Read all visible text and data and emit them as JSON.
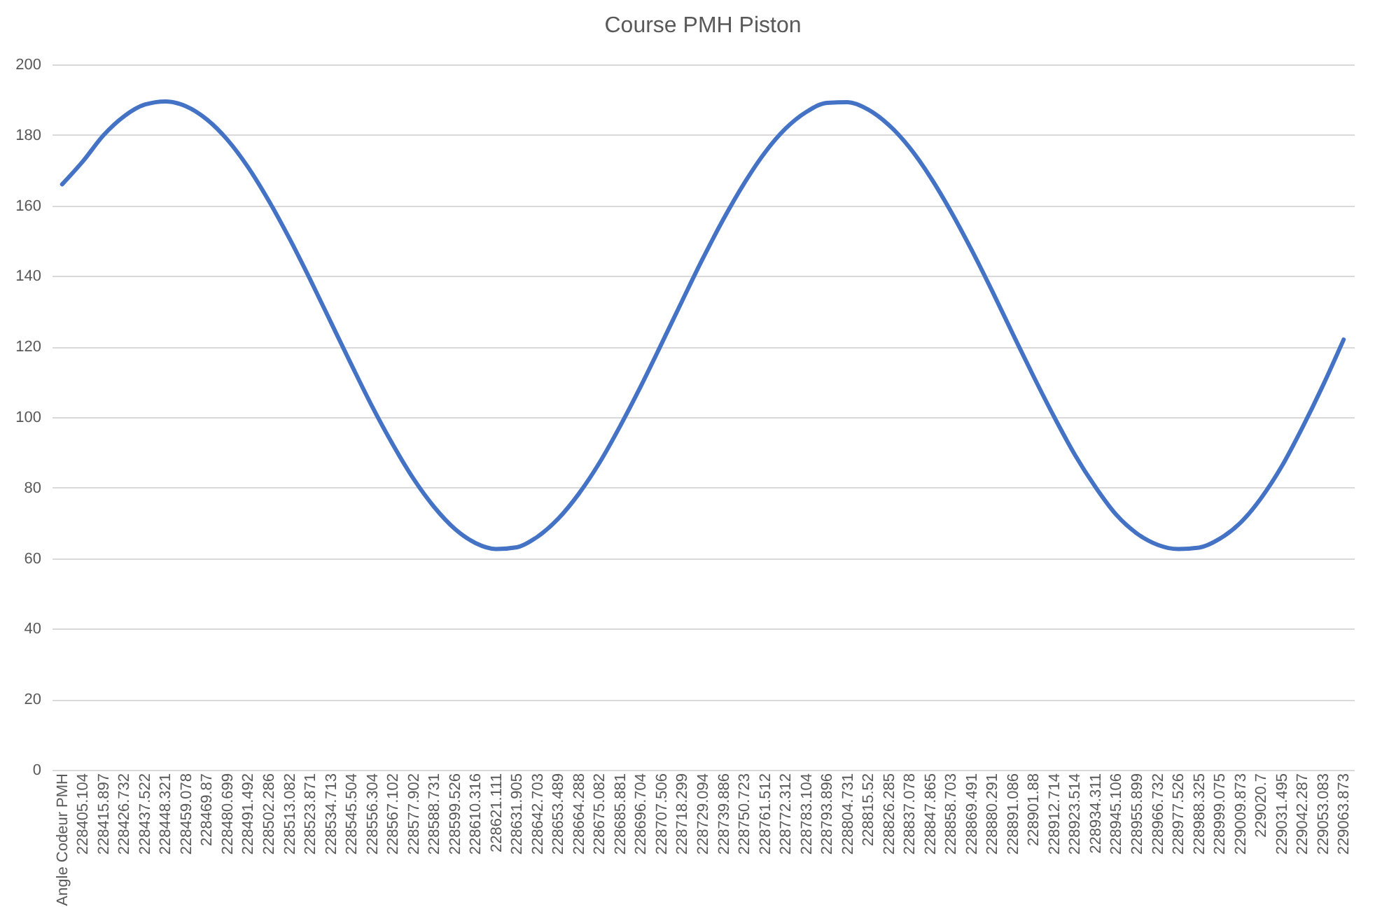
{
  "chart_data": {
    "type": "line",
    "title": "Course PMH Piston",
    "categories": [
      "Angle Codeur PMH",
      "228405.104",
      "228415.897",
      "228426.732",
      "228437.522",
      "228448.321",
      "228459.078",
      "228469.87",
      "228480.699",
      "228491.492",
      "228502.286",
      "228513.082",
      "228523.871",
      "228534.713",
      "228545.504",
      "228556.304",
      "228567.102",
      "228577.902",
      "228588.731",
      "228599.526",
      "228610.316",
      "228621.111",
      "228631.905",
      "228642.703",
      "228653.489",
      "228664.288",
      "228675.082",
      "228685.881",
      "228696.704",
      "228707.506",
      "228718.299",
      "228729.094",
      "228739.886",
      "228750.723",
      "228761.512",
      "228772.312",
      "228783.104",
      "228793.896",
      "228804.731",
      "228815.52",
      "228826.285",
      "228837.078",
      "228847.865",
      "228858.703",
      "228869.491",
      "228880.291",
      "228891.086",
      "228901.88",
      "228912.714",
      "228923.514",
      "228934.311",
      "228945.106",
      "228955.899",
      "228966.732",
      "228977.526",
      "228988.325",
      "228999.075",
      "229009.873",
      "229020.7",
      "229031.495",
      "229042.287",
      "229053.083",
      "229063.873"
    ],
    "series": [
      {
        "color": "#4472c4",
        "values": [
          166,
          172.5,
          179.9,
          185.3,
          188.6,
          189.5,
          188.1,
          184.4,
          178.6,
          170.8,
          161.3,
          150.6,
          139,
          126.9,
          114.8,
          103,
          92.2,
          82.5,
          74.5,
          68.3,
          64.3,
          62.6,
          63.1,
          66.1,
          71.2,
          78.3,
          87.1,
          97.5,
          108.8,
          120.8,
          133,
          145,
          156.2,
          166.3,
          175,
          181.8,
          186.5,
          189.1,
          189.3,
          187.2,
          182.8,
          176.4,
          168.1,
          158.3,
          147.4,
          135.7,
          123.5,
          111.5,
          100,
          89.3,
          80.1,
          72.3,
          67,
          63.8,
          62.6,
          63,
          65.5,
          70,
          77,
          86,
          97,
          109,
          122
        ]
      }
    ],
    "ylim": [
      0,
      200
    ],
    "yticks": [
      0,
      20,
      40,
      60,
      80,
      100,
      120,
      140,
      160,
      180,
      200
    ],
    "grid": "y",
    "legend": false,
    "marker": "none",
    "line_style": "solid"
  }
}
